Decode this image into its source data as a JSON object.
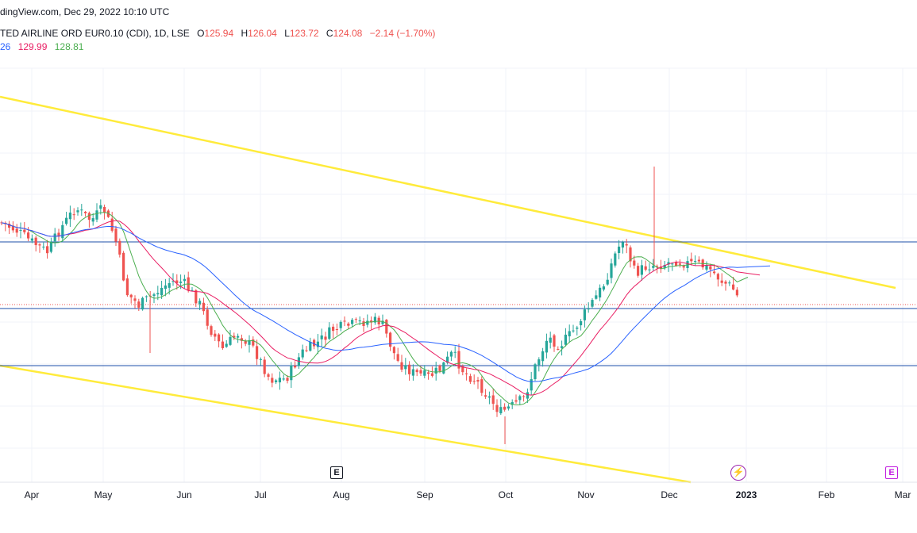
{
  "header": {
    "source_line": "dingView.com, Dec 29, 2022 10:10 UTC",
    "symbol": "TED AIRLINE ORD EUR0.10 (CDI), 1D, LSE",
    "ohlc": {
      "o_label": "O",
      "o": "125.94",
      "h_label": "H",
      "h": "126.04",
      "l_label": "L",
      "l": "123.72",
      "c_label": "C",
      "c": "124.08",
      "change": "−2.14 (−1.70%)"
    },
    "ma_values": [
      {
        "text": "26",
        "color": "#2962ff"
      },
      {
        "text": "129.99",
        "color": "#e91e63"
      },
      {
        "text": "128.81",
        "color": "#4caf50"
      }
    ]
  },
  "x_axis": {
    "labels": [
      "Apr",
      "May",
      "Jun",
      "Jul",
      "Aug",
      "Sep",
      "Oct",
      "Nov",
      "Dec",
      "2023",
      "Feb",
      "Mar"
    ]
  },
  "events": {
    "earnings_aug": "E",
    "dividend_jan": "⚡",
    "earnings_mar": "E"
  },
  "chart_data": {
    "type": "candlestick",
    "period": "1D",
    "up_color": "#26a69a",
    "down_color": "#ef5350",
    "ma_colors": [
      "#4caf50",
      "#e91e63",
      "#2962ff"
    ],
    "trendline_color": "#ffeb3b",
    "hline_color": "#1e4fa8",
    "grid": true
  }
}
